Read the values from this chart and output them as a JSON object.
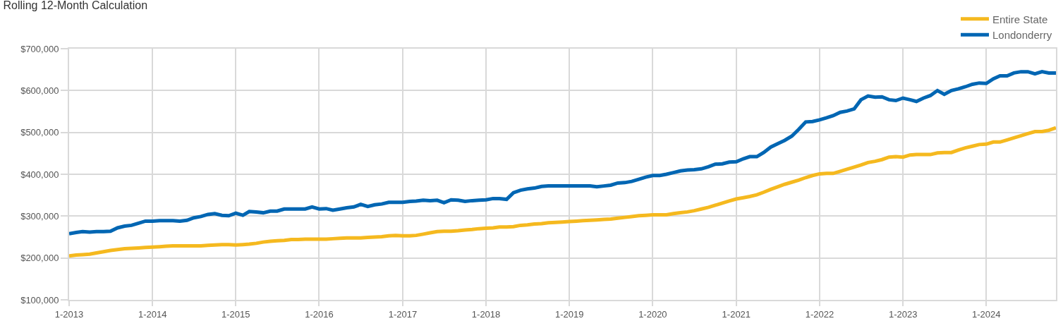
{
  "chart_data": {
    "type": "line",
    "title": "Rolling 12-Month Calculation",
    "x": [
      "2013-01",
      "2013-02",
      "2013-03",
      "2013-04",
      "2013-05",
      "2013-06",
      "2013-07",
      "2013-08",
      "2013-09",
      "2013-10",
      "2013-11",
      "2013-12",
      "2014-01",
      "2014-02",
      "2014-03",
      "2014-04",
      "2014-05",
      "2014-06",
      "2014-07",
      "2014-08",
      "2014-09",
      "2014-10",
      "2014-11",
      "2014-12",
      "2015-01",
      "2015-02",
      "2015-03",
      "2015-04",
      "2015-05",
      "2015-06",
      "2015-07",
      "2015-08",
      "2015-09",
      "2015-10",
      "2015-11",
      "2015-12",
      "2016-01",
      "2016-02",
      "2016-03",
      "2016-04",
      "2016-05",
      "2016-06",
      "2016-07",
      "2016-08",
      "2016-09",
      "2016-10",
      "2016-11",
      "2016-12",
      "2017-01",
      "2017-02",
      "2017-03",
      "2017-04",
      "2017-05",
      "2017-06",
      "2017-07",
      "2017-08",
      "2017-09",
      "2017-10",
      "2017-11",
      "2017-12",
      "2018-01",
      "2018-02",
      "2018-03",
      "2018-04",
      "2018-05",
      "2018-06",
      "2018-07",
      "2018-08",
      "2018-09",
      "2018-10",
      "2018-11",
      "2018-12",
      "2019-01",
      "2019-02",
      "2019-03",
      "2019-04",
      "2019-05",
      "2019-06",
      "2019-07",
      "2019-08",
      "2019-09",
      "2019-10",
      "2019-11",
      "2019-12",
      "2020-01",
      "2020-02",
      "2020-03",
      "2020-04",
      "2020-05",
      "2020-06",
      "2020-07",
      "2020-08",
      "2020-09",
      "2020-10",
      "2020-11",
      "2020-12",
      "2021-01",
      "2021-02",
      "2021-03",
      "2021-04",
      "2021-05",
      "2021-06",
      "2021-07",
      "2021-08",
      "2021-09",
      "2021-10",
      "2021-11",
      "2021-12",
      "2022-01",
      "2022-02",
      "2022-03",
      "2022-04",
      "2022-05",
      "2022-06",
      "2022-07",
      "2022-08",
      "2022-09",
      "2022-10",
      "2022-11",
      "2022-12",
      "2023-01",
      "2023-02",
      "2023-03",
      "2023-04",
      "2023-05",
      "2023-06",
      "2023-07",
      "2023-08",
      "2023-09",
      "2023-10",
      "2023-11",
      "2023-12",
      "2024-01",
      "2024-02",
      "2024-03",
      "2024-04",
      "2024-05",
      "2024-06",
      "2024-07",
      "2024-08",
      "2024-09",
      "2024-10",
      "2024-11"
    ],
    "series": [
      {
        "name": "Entire State",
        "color": "#f5b91f",
        "values": [
          205000,
          207000,
          208000,
          209000,
          212000,
          215000,
          218000,
          220000,
          222000,
          223000,
          224000,
          225000,
          226000,
          227000,
          228000,
          229000,
          229000,
          229000,
          229000,
          229000,
          230000,
          231000,
          232000,
          232000,
          231000,
          232000,
          233000,
          235000,
          238000,
          240000,
          241000,
          242000,
          244000,
          244000,
          245000,
          245000,
          245000,
          245000,
          246000,
          247000,
          248000,
          248000,
          248000,
          249000,
          250000,
          251000,
          253000,
          254000,
          253000,
          253000,
          254000,
          257000,
          260000,
          263000,
          264000,
          264000,
          265000,
          267000,
          268000,
          270000,
          271000,
          272000,
          274000,
          274000,
          275000,
          278000,
          279000,
          281000,
          282000,
          284000,
          285000,
          286000,
          287000,
          288000,
          289000,
          290000,
          291000,
          292000,
          293000,
          295000,
          297000,
          299000,
          301000,
          302000,
          303000,
          303000,
          303000,
          306000,
          308000,
          310000,
          313000,
          317000,
          321000,
          326000,
          331000,
          336000,
          341000,
          344000,
          347000,
          351000,
          357000,
          364000,
          370000,
          376000,
          381000,
          386000,
          392000,
          397000,
          401000,
          402000,
          402000,
          407000,
          412000,
          417000,
          422000,
          428000,
          431000,
          435000,
          441000,
          442000,
          441000,
          446000,
          447000,
          447000,
          447000,
          451000,
          452000,
          452000,
          458000,
          463000,
          467000,
          471000,
          472000,
          477000,
          477000,
          482000,
          487000,
          492000,
          497000,
          502000,
          502000,
          505000,
          511000
        ]
      },
      {
        "name": "Londonderry",
        "color": "#0066b3",
        "values": [
          258000,
          261000,
          263000,
          262000,
          263000,
          263000,
          264000,
          272000,
          276000,
          278000,
          283000,
          288000,
          288000,
          289000,
          289000,
          289000,
          288000,
          290000,
          296000,
          299000,
          304000,
          306000,
          302000,
          301000,
          307000,
          302000,
          311000,
          310000,
          308000,
          312000,
          312000,
          317000,
          317000,
          317000,
          317000,
          322000,
          317000,
          318000,
          314000,
          317000,
          320000,
          322000,
          328000,
          323000,
          327000,
          329000,
          333000,
          333000,
          333000,
          335000,
          336000,
          338000,
          337000,
          338000,
          332000,
          339000,
          338000,
          335000,
          337000,
          338000,
          339000,
          342000,
          342000,
          340000,
          356000,
          362000,
          365000,
          367000,
          371000,
          372000,
          372000,
          372000,
          372000,
          372000,
          372000,
          372000,
          370000,
          372000,
          374000,
          379000,
          380000,
          383000,
          388000,
          393000,
          397000,
          397000,
          400000,
          404000,
          408000,
          410000,
          411000,
          413000,
          418000,
          424000,
          425000,
          429000,
          430000,
          437000,
          442000,
          442000,
          452000,
          465000,
          473000,
          481000,
          491000,
          507000,
          525000,
          526000,
          530000,
          535000,
          540000,
          548000,
          551000,
          556000,
          578000,
          587000,
          584000,
          585000,
          578000,
          576000,
          582000,
          578000,
          574000,
          582000,
          588000,
          600000,
          591000,
          600000,
          604000,
          609000,
          615000,
          618000,
          617000,
          628000,
          635000,
          635000,
          642000,
          645000,
          645000,
          640000,
          645000,
          642000,
          642000
        ]
      }
    ],
    "xlim": [
      "2013-01",
      "2024-11"
    ],
    "xticks": [
      {
        "value": "2013-01",
        "label": "1-2013"
      },
      {
        "value": "2014-01",
        "label": "1-2014"
      },
      {
        "value": "2015-01",
        "label": "1-2015"
      },
      {
        "value": "2016-01",
        "label": "1-2016"
      },
      {
        "value": "2017-01",
        "label": "1-2017"
      },
      {
        "value": "2018-01",
        "label": "1-2018"
      },
      {
        "value": "2019-01",
        "label": "1-2019"
      },
      {
        "value": "2020-01",
        "label": "1-2020"
      },
      {
        "value": "2021-01",
        "label": "1-2021"
      },
      {
        "value": "2022-01",
        "label": "1-2022"
      },
      {
        "value": "2023-01",
        "label": "1-2023"
      },
      {
        "value": "2024-01",
        "label": "1-2024"
      }
    ],
    "ylim": [
      100000,
      700000
    ],
    "yticks": [
      {
        "value": 100000,
        "label": "$100,000"
      },
      {
        "value": 200000,
        "label": "$200,000"
      },
      {
        "value": 300000,
        "label": "$300,000"
      },
      {
        "value": 400000,
        "label": "$400,000"
      },
      {
        "value": 500000,
        "label": "$500,000"
      },
      {
        "value": 600000,
        "label": "$600,000"
      },
      {
        "value": 700000,
        "label": "$700,000"
      }
    ],
    "grid": true,
    "legend": "top right",
    "line_style": "solid"
  }
}
